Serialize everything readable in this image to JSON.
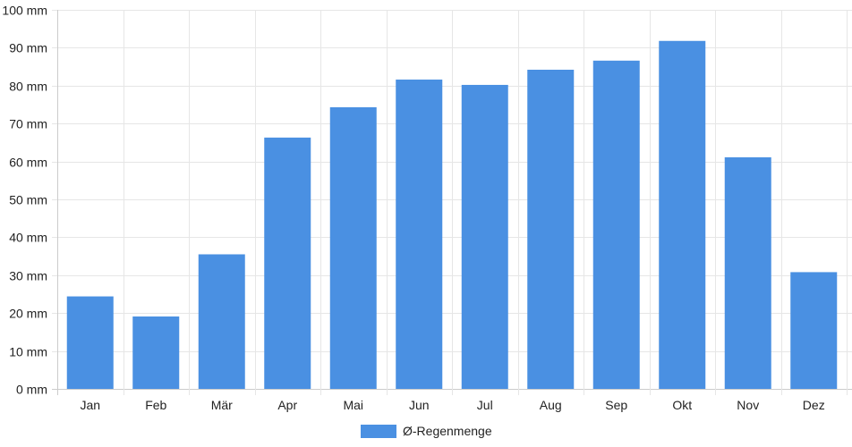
{
  "chart_data": {
    "type": "bar",
    "categories": [
      "Jan",
      "Feb",
      "Mär",
      "Apr",
      "Mai",
      "Jun",
      "Jul",
      "Aug",
      "Sep",
      "Okt",
      "Nov",
      "Dez"
    ],
    "series": [
      {
        "name": "Ø-Regenmenge",
        "values": [
          24.4,
          19.1,
          35.5,
          66.3,
          74.3,
          81.6,
          80.2,
          84.2,
          86.6,
          91.8,
          61.1,
          30.8
        ]
      }
    ],
    "y_unit": "mm",
    "ylim": [
      0,
      100
    ],
    "y_ticks": [
      0,
      10,
      20,
      30,
      40,
      50,
      60,
      70,
      80,
      90,
      100
    ],
    "y_tick_labels": [
      "0 mm",
      "10 mm",
      "20 mm",
      "30 mm",
      "40 mm",
      "50 mm",
      "60 mm",
      "70 mm",
      "80 mm",
      "90 mm",
      "100 mm"
    ],
    "grid": true,
    "legend_position": "bottom-center",
    "colors": {
      "bar": "#4a90e2",
      "grid": "#e6e6e6",
      "axis": "#cccccc"
    }
  }
}
